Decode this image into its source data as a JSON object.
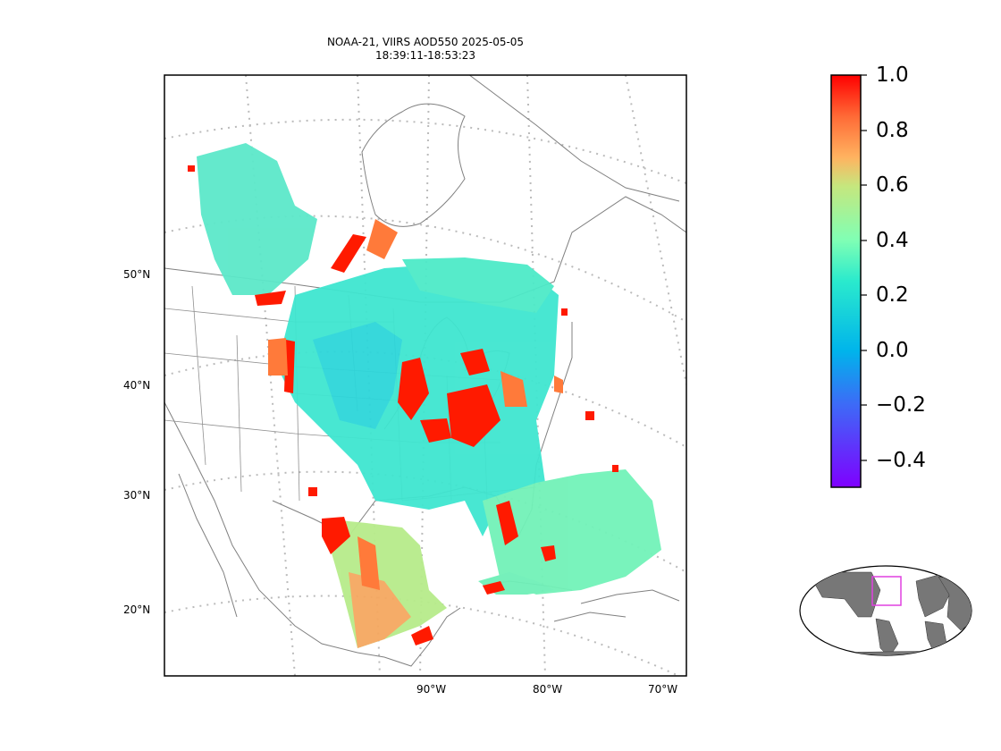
{
  "title": {
    "line1": "NOAA-21, VIIRS AOD550 2025-05-05",
    "line2": "18:39:11-18:53:23"
  },
  "lat_labels": [
    "50°N",
    "40°N",
    "30°N",
    "20°N"
  ],
  "lon_labels": [
    "90°W",
    "80°W",
    "70°W"
  ],
  "colorbar": {
    "colormap": "rainbow",
    "min": -0.5,
    "max": 1.0,
    "ticks": [
      "1.0",
      "0.8",
      "0.6",
      "0.4",
      "0.2",
      "0.0",
      "−0.2",
      "−0.4"
    ]
  },
  "colors": {
    "coastline": "#808080",
    "graticule": "#bbbbbb",
    "inset_land": "#777777",
    "inset_box": "#e040e0"
  }
}
